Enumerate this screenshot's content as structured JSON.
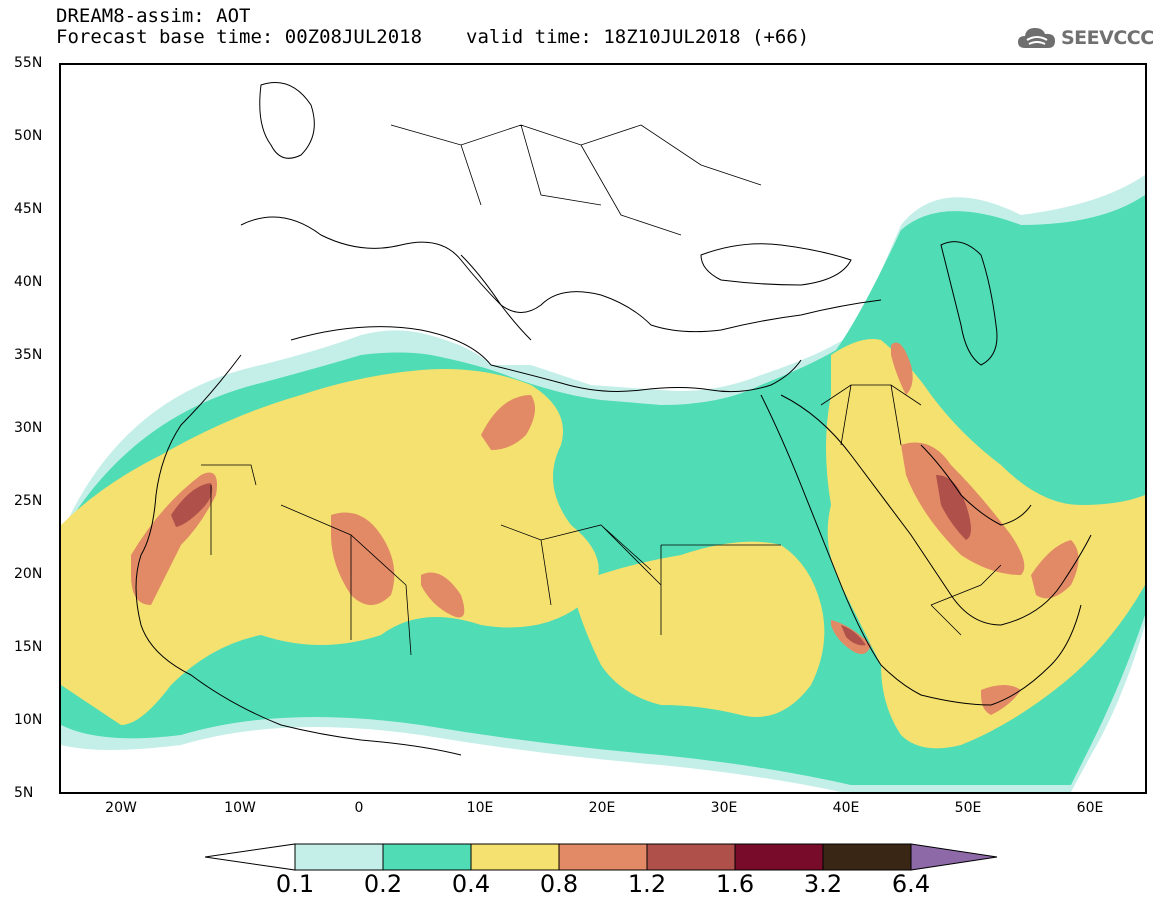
{
  "header": {
    "model_title": "DREAM8-assim: AOT",
    "base_time": "Forecast base time: 00Z08JUL2018",
    "valid_time": "valid time: 18Z10JUL2018 (+66)"
  },
  "logo": {
    "text": "SEEVCCC",
    "icon": "cloud-icon"
  },
  "map": {
    "lon_range": [
      -25,
      65
    ],
    "lat_range": [
      5,
      55
    ],
    "lat_ticks": [
      "55N",
      "50N",
      "45N",
      "40N",
      "35N",
      "30N",
      "25N",
      "20N",
      "15N",
      "10N",
      "5N"
    ],
    "lon_ticks": [
      "20W",
      "10W",
      "0",
      "10E",
      "20E",
      "30E",
      "40E",
      "50E",
      "60E"
    ],
    "colors": {
      "lvl_0_1": "#c4efe8",
      "lvl_0_2": "#50dcb4",
      "lvl_0_4": "#f5e170",
      "lvl_0_8": "#e28a66",
      "lvl_1_2": "#b0504a",
      "lvl_1_6": "#780a2a"
    }
  },
  "colorbar": {
    "levels": [
      "0.1",
      "0.2",
      "0.4",
      "0.8",
      "1.2",
      "1.6",
      "3.2",
      "6.4"
    ],
    "colors": [
      "#c4efe8",
      "#50dcb4",
      "#f5e170",
      "#e28a66",
      "#b0504a",
      "#780a2a",
      "#3a2614"
    ],
    "under_color": "#ffffff",
    "over_color": "#8e69a8"
  }
}
